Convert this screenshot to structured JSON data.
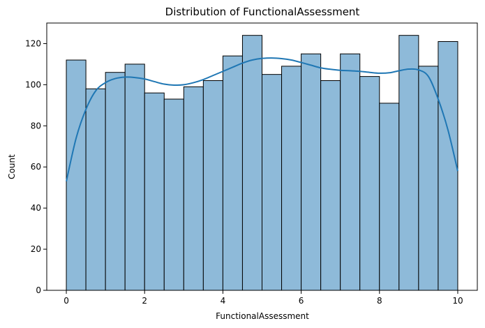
{
  "chart_data": {
    "type": "bar",
    "title": "Distribution of FunctionalAssessment",
    "xlabel": "FunctionalAssessment",
    "ylabel": "Count",
    "bin_edges": [
      0,
      0.5,
      1,
      1.5,
      2,
      2.5,
      3,
      3.5,
      4,
      4.5,
      5,
      5.5,
      6,
      6.5,
      7,
      7.5,
      8,
      8.5,
      9,
      9.5,
      10
    ],
    "values": [
      112,
      98,
      106,
      110,
      96,
      93,
      99,
      102,
      114,
      124,
      105,
      109,
      115,
      102,
      115,
      104,
      91,
      124,
      109,
      121
    ],
    "kde": {
      "x": [
        0,
        0.25,
        0.5,
        0.75,
        1,
        1.25,
        1.5,
        1.75,
        2,
        2.25,
        2.5,
        2.75,
        3,
        3.25,
        3.5,
        3.75,
        4,
        4.25,
        4.5,
        4.75,
        5,
        5.25,
        5.5,
        5.75,
        6,
        6.25,
        6.5,
        6.75,
        7,
        7.25,
        7.5,
        7.75,
        8,
        8.25,
        8.5,
        8.75,
        9,
        9.25,
        9.5,
        9.75,
        10
      ],
      "y": [
        53,
        74,
        88,
        97,
        101,
        103,
        103.7,
        103.5,
        102.8,
        101.5,
        100.3,
        99.8,
        100,
        101,
        102.5,
        104.5,
        106.5,
        108.5,
        110.5,
        112,
        112.8,
        113,
        112.7,
        112,
        110.8,
        109.5,
        108.2,
        107.5,
        107,
        106.8,
        106.5,
        106,
        105.6,
        105.8,
        106.8,
        107.6,
        107.2,
        104,
        93,
        78,
        58
      ]
    },
    "xticks": [
      "0",
      "2",
      "4",
      "6",
      "8",
      "10"
    ],
    "yticks": [
      "0",
      "20",
      "40",
      "60",
      "80",
      "100",
      "120"
    ],
    "xlim": [
      -0.5,
      10.5
    ],
    "ylim": [
      0,
      130
    ],
    "grid": false,
    "colors": {
      "bar_fill": "#8ebad9",
      "bar_edge": "#000000",
      "kde_line": "#1f77b4"
    }
  }
}
